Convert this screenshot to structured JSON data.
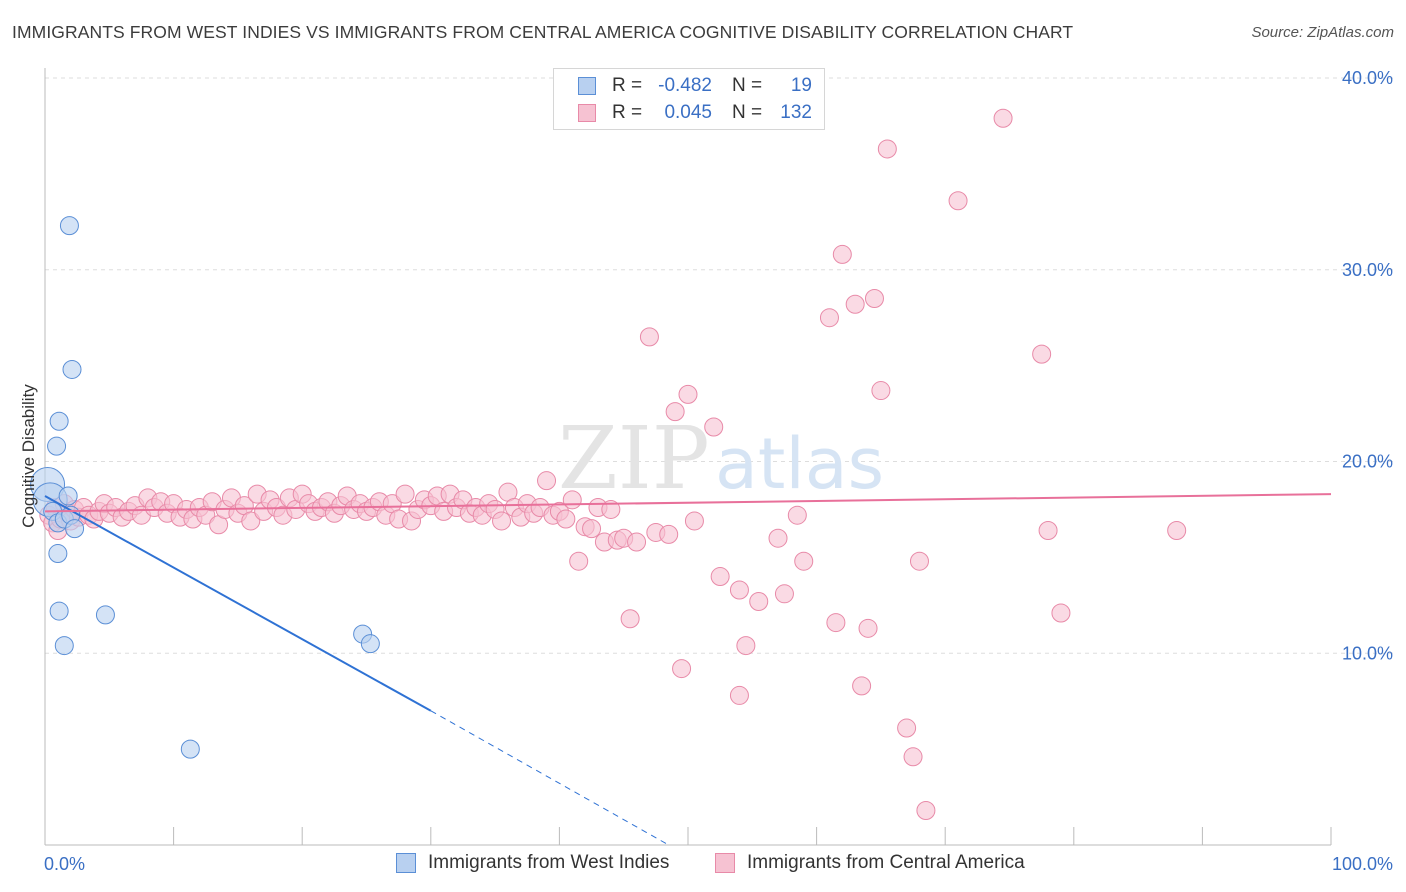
{
  "header": {
    "title": "IMMIGRANTS FROM WEST INDIES VS IMMIGRANTS FROM CENTRAL AMERICA COGNITIVE DISABILITY CORRELATION CHART",
    "source": "Source: ZipAtlas.com"
  },
  "legend": {
    "rows": [
      {
        "r_label": "R =",
        "r_value": "-0.482",
        "n_label": "N =",
        "n_value": "19"
      },
      {
        "r_label": "R =",
        "r_value": "0.045",
        "n_label": "N =",
        "n_value": "132"
      }
    ]
  },
  "watermark": {
    "part1": "ZIP",
    "part2": "atlas"
  },
  "colors": {
    "blue_fill": "#b8d0f0",
    "blue_stroke": "#5b8fd6",
    "blue_line": "#2f72d4",
    "pink_fill": "#f6c2d2",
    "pink_stroke": "#e88aa8",
    "pink_line": "#e8709a",
    "axis_label": "#3a6fc4",
    "grid": "#dddddd"
  },
  "chart_data": {
    "type": "scatter",
    "title": "IMMIGRANTS FROM WEST INDIES VS IMMIGRANTS FROM CENTRAL AMERICA COGNITIVE DISABILITY CORRELATION CHART",
    "xlabel": "",
    "ylabel": "Cognitive Disability",
    "xlim": [
      0,
      100
    ],
    "ylim": [
      0,
      40
    ],
    "x_tick_labels": [
      "0.0%",
      "100.0%"
    ],
    "y_ticks": [
      10,
      20,
      30,
      40
    ],
    "y_tick_labels": [
      "10.0%",
      "20.0%",
      "30.0%",
      "40.0%"
    ],
    "grid": true,
    "series": [
      {
        "name": "Immigrants from West Indies",
        "color": "#5b8fd6",
        "r": -0.482,
        "n": 19,
        "trend": {
          "x0": 0,
          "y0": 18.2,
          "x1": 30,
          "y1": 7.0,
          "dash_to_x": 48.5,
          "dash_to_y": 0
        },
        "points": [
          [
            0.2,
            18.8
          ],
          [
            0.4,
            18.0
          ],
          [
            0.6,
            17.4
          ],
          [
            1.0,
            16.8
          ],
          [
            1.5,
            17.0
          ],
          [
            2.0,
            17.2
          ],
          [
            1.8,
            18.2
          ],
          [
            2.3,
            16.5
          ],
          [
            1.9,
            32.3
          ],
          [
            2.1,
            24.8
          ],
          [
            1.1,
            22.1
          ],
          [
            0.9,
            20.8
          ],
          [
            1.0,
            15.2
          ],
          [
            1.1,
            12.2
          ],
          [
            4.7,
            12.0
          ],
          [
            1.5,
            10.4
          ],
          [
            24.7,
            11.0
          ],
          [
            25.3,
            10.5
          ],
          [
            11.3,
            5.0
          ]
        ]
      },
      {
        "name": "Immigrants from Central America",
        "color": "#e88aa8",
        "r": 0.045,
        "n": 132,
        "trend": {
          "x0": 0,
          "y0": 17.4,
          "x1": 100,
          "y1": 18.3
        },
        "points": [
          [
            0.3,
            17.2
          ],
          [
            0.6,
            16.8
          ],
          [
            0.8,
            17.6
          ],
          [
            1.0,
            16.4
          ],
          [
            1.2,
            17.0
          ],
          [
            1.5,
            17.8
          ],
          [
            1.8,
            17.3
          ],
          [
            2.0,
            16.9
          ],
          [
            2.3,
            17.5
          ],
          [
            2.6,
            17.1
          ],
          [
            3.0,
            17.6
          ],
          [
            3.4,
            17.2
          ],
          [
            3.8,
            17.0
          ],
          [
            4.2,
            17.4
          ],
          [
            4.6,
            17.8
          ],
          [
            5.0,
            17.3
          ],
          [
            5.5,
            17.6
          ],
          [
            6.0,
            17.1
          ],
          [
            6.5,
            17.4
          ],
          [
            7.0,
            17.7
          ],
          [
            7.5,
            17.2
          ],
          [
            8.0,
            18.1
          ],
          [
            8.5,
            17.6
          ],
          [
            9.0,
            17.9
          ],
          [
            9.5,
            17.3
          ],
          [
            10.0,
            17.8
          ],
          [
            10.5,
            17.1
          ],
          [
            11.0,
            17.5
          ],
          [
            11.5,
            17.0
          ],
          [
            12.0,
            17.6
          ],
          [
            12.5,
            17.2
          ],
          [
            13.0,
            17.9
          ],
          [
            13.5,
            16.7
          ],
          [
            14.0,
            17.5
          ],
          [
            14.5,
            18.1
          ],
          [
            15.0,
            17.3
          ],
          [
            15.5,
            17.7
          ],
          [
            16.0,
            16.9
          ],
          [
            16.5,
            18.3
          ],
          [
            17.0,
            17.4
          ],
          [
            17.5,
            18.0
          ],
          [
            18.0,
            17.6
          ],
          [
            18.5,
            17.2
          ],
          [
            19.0,
            18.1
          ],
          [
            19.5,
            17.5
          ],
          [
            20.0,
            18.3
          ],
          [
            20.5,
            17.8
          ],
          [
            21.0,
            17.4
          ],
          [
            21.5,
            17.6
          ],
          [
            22.0,
            17.9
          ],
          [
            22.5,
            17.3
          ],
          [
            23.0,
            17.7
          ],
          [
            23.5,
            18.2
          ],
          [
            24.0,
            17.5
          ],
          [
            24.5,
            17.8
          ],
          [
            25.0,
            17.4
          ],
          [
            25.5,
            17.6
          ],
          [
            26.0,
            17.9
          ],
          [
            26.5,
            17.2
          ],
          [
            27.0,
            17.8
          ],
          [
            27.5,
            17.0
          ],
          [
            28.0,
            18.3
          ],
          [
            28.5,
            16.9
          ],
          [
            29.0,
            17.5
          ],
          [
            29.5,
            18.0
          ],
          [
            30.0,
            17.7
          ],
          [
            30.5,
            18.2
          ],
          [
            31.0,
            17.4
          ],
          [
            31.5,
            18.3
          ],
          [
            32.0,
            17.6
          ],
          [
            32.5,
            18.0
          ],
          [
            33.0,
            17.3
          ],
          [
            33.5,
            17.6
          ],
          [
            34.0,
            17.2
          ],
          [
            34.5,
            17.8
          ],
          [
            35.0,
            17.5
          ],
          [
            35.5,
            16.9
          ],
          [
            36.0,
            18.4
          ],
          [
            36.5,
            17.6
          ],
          [
            37.0,
            17.1
          ],
          [
            37.5,
            17.8
          ],
          [
            38.0,
            17.3
          ],
          [
            38.5,
            17.6
          ],
          [
            39.0,
            19.0
          ],
          [
            39.5,
            17.2
          ],
          [
            40.0,
            17.4
          ],
          [
            40.5,
            17.0
          ],
          [
            41.0,
            18.0
          ],
          [
            41.5,
            14.8
          ],
          [
            42.0,
            16.6
          ],
          [
            42.5,
            16.5
          ],
          [
            43.0,
            17.6
          ],
          [
            43.5,
            15.8
          ],
          [
            44.0,
            17.5
          ],
          [
            44.5,
            15.9
          ],
          [
            45.0,
            16.0
          ],
          [
            45.5,
            11.8
          ],
          [
            46.0,
            15.8
          ],
          [
            47.0,
            26.5
          ],
          [
            47.5,
            16.3
          ],
          [
            48.5,
            16.2
          ],
          [
            49.0,
            22.6
          ],
          [
            49.5,
            9.2
          ],
          [
            50.0,
            23.5
          ],
          [
            50.5,
            16.9
          ],
          [
            52.0,
            21.8
          ],
          [
            52.5,
            14.0
          ],
          [
            54.0,
            7.8
          ],
          [
            54.5,
            10.4
          ],
          [
            54.0,
            13.3
          ],
          [
            55.5,
            12.7
          ],
          [
            57.0,
            16.0
          ],
          [
            57.5,
            13.1
          ],
          [
            58.5,
            17.2
          ],
          [
            59.0,
            14.8
          ],
          [
            61.0,
            27.5
          ],
          [
            61.5,
            11.6
          ],
          [
            62.0,
            30.8
          ],
          [
            63.0,
            28.2
          ],
          [
            63.5,
            8.3
          ],
          [
            64.0,
            11.3
          ],
          [
            64.5,
            28.5
          ],
          [
            65.0,
            23.7
          ],
          [
            65.5,
            36.3
          ],
          [
            67.0,
            6.1
          ],
          [
            67.5,
            4.6
          ],
          [
            68.0,
            14.8
          ],
          [
            68.5,
            1.8
          ],
          [
            71.0,
            33.6
          ],
          [
            74.5,
            37.9
          ],
          [
            77.5,
            25.6
          ],
          [
            78.0,
            16.4
          ],
          [
            79.0,
            12.1
          ],
          [
            88.0,
            16.4
          ]
        ]
      }
    ]
  }
}
